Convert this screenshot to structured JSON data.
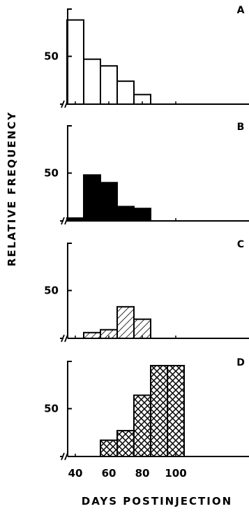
{
  "chart_data": {
    "type": "bar",
    "ylabel": "RELATIVE FREQUENCY",
    "xlabel": "DAYS POSTINJECTION",
    "x_ticks": [
      40,
      60,
      80,
      100
    ],
    "y_ticks": [
      50
    ],
    "bin_width": 10,
    "xlim": [
      20,
      120
    ],
    "ylim": [
      0,
      95
    ],
    "axis_break": true,
    "panels": [
      {
        "label": "A",
        "fill": "none",
        "bins": [
          {
            "start": 35,
            "value": 88
          },
          {
            "start": 45,
            "value": 47
          },
          {
            "start": 55,
            "value": 40
          },
          {
            "start": 65,
            "value": 24
          },
          {
            "start": 75,
            "value": 10
          }
        ]
      },
      {
        "label": "B",
        "fill": "solid",
        "bins": [
          {
            "start": 35,
            "value": 3
          },
          {
            "start": 45,
            "value": 48
          },
          {
            "start": 55,
            "value": 40
          },
          {
            "start": 65,
            "value": 15
          },
          {
            "start": 75,
            "value": 13
          }
        ]
      },
      {
        "label": "C",
        "fill": "diagonal",
        "bins": [
          {
            "start": 45,
            "value": 6
          },
          {
            "start": 55,
            "value": 9
          },
          {
            "start": 65,
            "value": 33
          },
          {
            "start": 75,
            "value": 20
          }
        ]
      },
      {
        "label": "D",
        "fill": "crosshatch",
        "bins": [
          {
            "start": 55,
            "value": 17
          },
          {
            "start": 65,
            "value": 27
          },
          {
            "start": 75,
            "value": 64
          },
          {
            "start": 85,
            "value": 95
          },
          {
            "start": 95,
            "value": 95
          }
        ]
      }
    ]
  }
}
